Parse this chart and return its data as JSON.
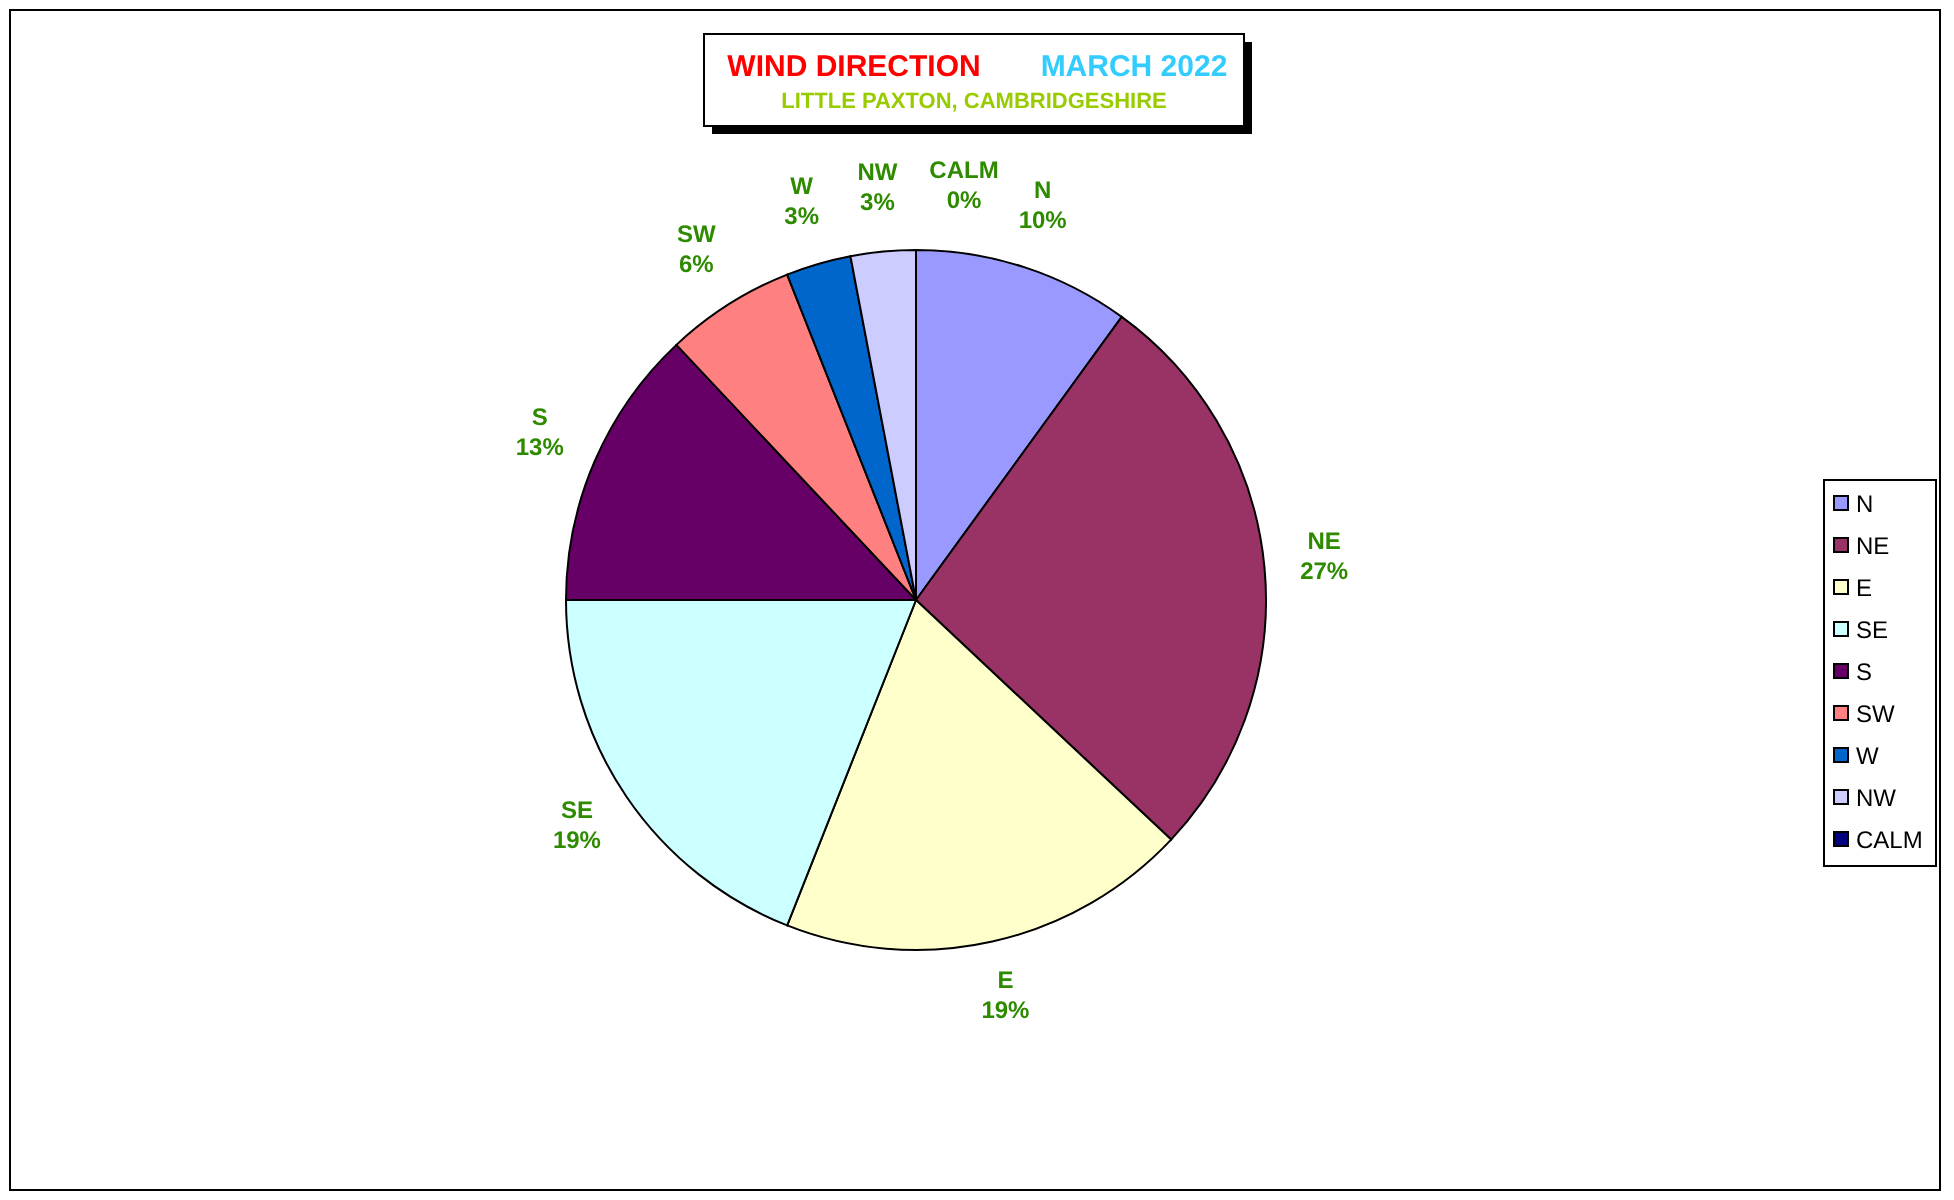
{
  "chart_data": {
    "type": "pie",
    "title": "WIND DIRECTION",
    "subtitle": "MARCH 2022",
    "annotations": [
      "LITTLE PAXTON, CAMBRIDGESHIRE"
    ],
    "categories": [
      "N",
      "NE",
      "E",
      "SE",
      "S",
      "SW",
      "W",
      "NW",
      "CALM"
    ],
    "values": [
      10,
      27,
      19,
      19,
      13,
      6,
      3,
      3,
      0
    ],
    "value_labels": [
      "10%",
      "27%",
      "19%",
      "19%",
      "13%",
      "6%",
      "3%",
      "3%",
      "0%"
    ],
    "colors": [
      "#9999ff",
      "#993366",
      "#ffffcc",
      "#ccffff",
      "#660066",
      "#ff8080",
      "#0066cc",
      "#ccccff",
      "#000080"
    ],
    "legend": "right"
  }
}
